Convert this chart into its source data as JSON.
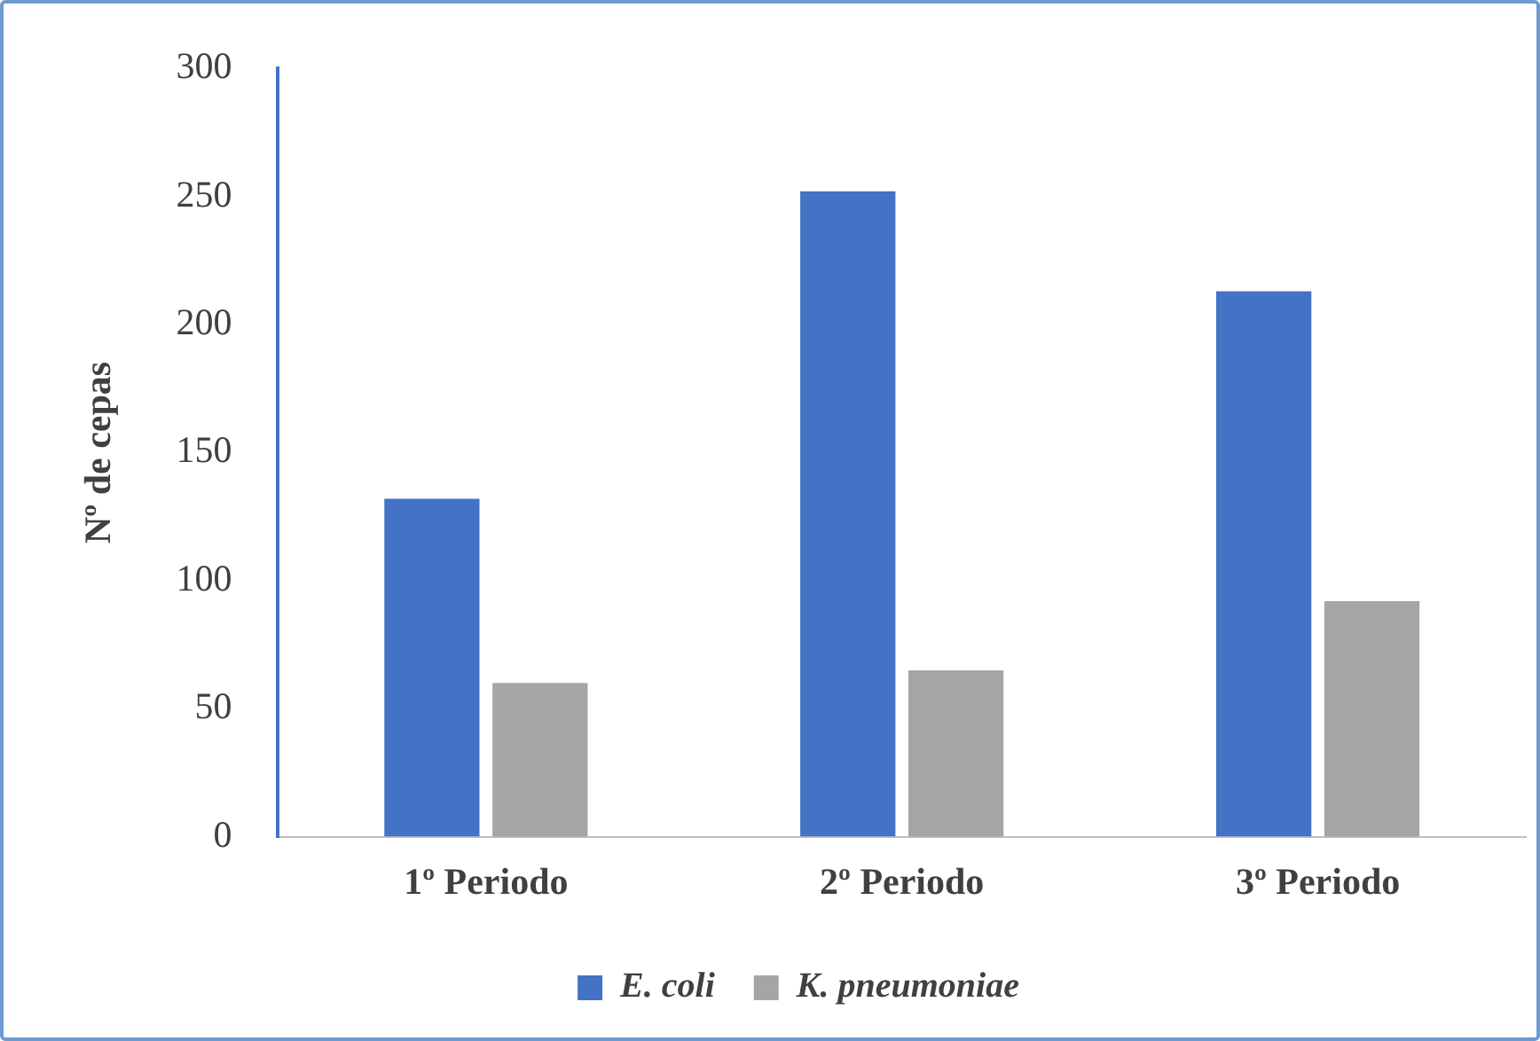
{
  "chart_data": {
    "type": "bar",
    "ylabel": "Nº de cepas",
    "categories": [
      "1º Periodo",
      "2º Periodo",
      "3º Periodo"
    ],
    "series": [
      {
        "name": "E. coli",
        "color": "#4472c4",
        "values": [
          132,
          252,
          213
        ]
      },
      {
        "name": "K. pneumoniae",
        "color": "#a5a5a5",
        "values": [
          60,
          65,
          92
        ]
      }
    ],
    "ylim": [
      0,
      300
    ],
    "yticks": [
      0,
      50,
      100,
      150,
      200,
      250,
      300
    ],
    "grid": false,
    "legend": "bottom"
  }
}
